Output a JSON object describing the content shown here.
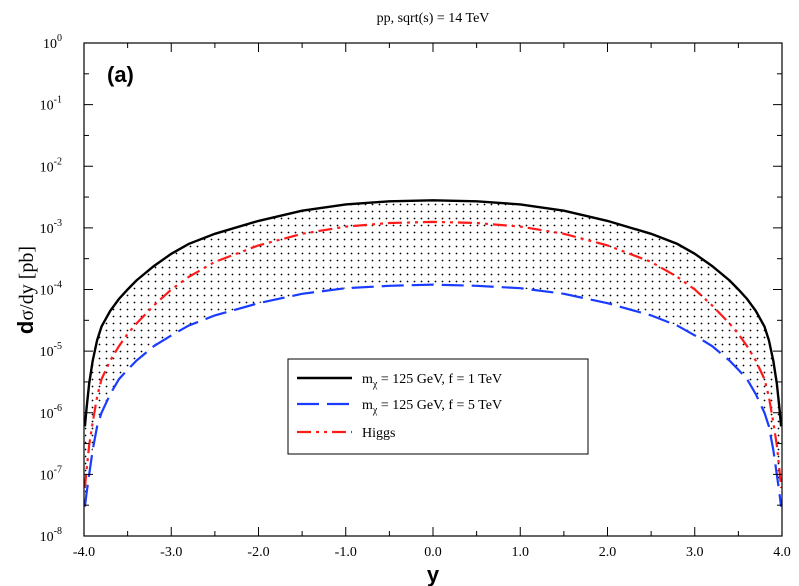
{
  "chart_data": {
    "type": "line",
    "title": "pp, sqrt(s) = 14 TeV",
    "panel_label": "(a)",
    "xlabel": "y",
    "ylabel": "dσ/dy [pb]",
    "xlim": [
      -4.0,
      4.0
    ],
    "ylim": [
      1e-08,
      1
    ],
    "y_scale": "log",
    "x_ticks": [
      "-4.0",
      "-3.0",
      "-2.0",
      "-1.0",
      "0.0",
      "1.0",
      "2.0",
      "3.0",
      "4.0"
    ],
    "y_ticks": [
      {
        "base": "10",
        "exp": "-8"
      },
      {
        "base": "10",
        "exp": "-7"
      },
      {
        "base": "10",
        "exp": "-6"
      },
      {
        "base": "10",
        "exp": "-5"
      },
      {
        "base": "10",
        "exp": "-4"
      },
      {
        "base": "10",
        "exp": "-3"
      },
      {
        "base": "10",
        "exp": "-2"
      },
      {
        "base": "10",
        "exp": "-1"
      },
      {
        "base": "10",
        "exp": "0"
      }
    ],
    "grid": false,
    "legend_position": "lower-center",
    "shaded_band": "between first and second series",
    "series": [
      {
        "name": "m_χ = 125 GeV, f = 1 TeV",
        "name_parts": {
          "m": "m",
          "sub": "χ",
          "rest": " = 125 GeV, f = 1 TeV"
        },
        "color": "#000000",
        "style": "solid",
        "x": [
          -3.99,
          -3.97,
          -3.94,
          -3.9,
          -3.85,
          -3.8,
          -3.7,
          -3.6,
          -3.5,
          -3.4,
          -3.2,
          -3.0,
          -2.8,
          -2.5,
          -2.0,
          -1.5,
          -1.0,
          -0.5,
          0.0,
          0.5,
          1.0,
          1.5,
          2.0,
          2.5,
          2.8,
          3.0,
          3.2,
          3.4,
          3.5,
          3.6,
          3.7,
          3.8,
          3.85,
          3.9,
          3.94,
          3.97,
          3.99
        ],
        "y": [
          6e-07,
          1.2e-06,
          3e-06,
          7e-06,
          1.5e-05,
          2.5e-05,
          4.5e-05,
          7e-05,
          0.0001,
          0.00014,
          0.00024,
          0.00038,
          0.00055,
          0.0008,
          0.0013,
          0.0019,
          0.0024,
          0.0027,
          0.0028,
          0.0027,
          0.0024,
          0.0019,
          0.0013,
          0.0008,
          0.00055,
          0.00038,
          0.00024,
          0.00014,
          0.0001,
          7e-05,
          4.5e-05,
          2.5e-05,
          1.5e-05,
          7e-06,
          3e-06,
          1.2e-06,
          6e-07
        ]
      },
      {
        "name": "m_χ = 125 GeV, f = 5 TeV",
        "name_parts": {
          "m": "m",
          "sub": "χ",
          "rest": " = 125 GeV, f = 5 TeV"
        },
        "color": "#1a3cff",
        "style": "dashed",
        "x": [
          -3.99,
          -3.97,
          -3.94,
          -3.9,
          -3.85,
          -3.8,
          -3.7,
          -3.6,
          -3.5,
          -3.4,
          -3.2,
          -3.0,
          -2.8,
          -2.5,
          -2.0,
          -1.5,
          -1.0,
          -0.5,
          0.0,
          0.5,
          1.0,
          1.5,
          2.0,
          2.5,
          2.8,
          3.0,
          3.2,
          3.4,
          3.5,
          3.6,
          3.7,
          3.8,
          3.85,
          3.9,
          3.94,
          3.97,
          3.99
        ],
        "y": [
          3e-08,
          5e-08,
          1e-07,
          2.5e-07,
          6e-07,
          1e-06,
          2e-06,
          3.5e-06,
          5e-06,
          7e-06,
          1.2e-05,
          1.8e-05,
          2.6e-05,
          3.8e-05,
          6e-05,
          8.5e-05,
          0.000105,
          0.000115,
          0.00012,
          0.000115,
          0.000105,
          8.5e-05,
          6e-05,
          3.8e-05,
          2.6e-05,
          1.8e-05,
          1.2e-05,
          7e-06,
          5e-06,
          3.5e-06,
          2e-06,
          1e-06,
          6e-07,
          2.5e-07,
          1e-07,
          5e-08,
          3e-08
        ]
      },
      {
        "name": "Higgs",
        "color": "#ff1a1a",
        "style": "dash-dot-dot",
        "x": [
          -3.99,
          -3.97,
          -3.94,
          -3.9,
          -3.85,
          -3.8,
          -3.7,
          -3.6,
          -3.5,
          -3.4,
          -3.2,
          -3.0,
          -2.8,
          -2.5,
          -2.0,
          -1.5,
          -1.0,
          -0.5,
          0.0,
          0.5,
          1.0,
          1.5,
          2.0,
          2.5,
          2.8,
          3.0,
          3.2,
          3.4,
          3.5,
          3.6,
          3.7,
          3.8,
          3.85,
          3.9,
          3.94,
          3.97,
          3.99
        ],
        "y": [
          6e-08,
          1.2e-07,
          3e-07,
          7e-07,
          1.8e-06,
          3.5e-06,
          7e-06,
          1.2e-05,
          1.9e-05,
          2.8e-05,
          5.5e-05,
          0.0001,
          0.00016,
          0.00028,
          0.00052,
          0.0008,
          0.00105,
          0.0012,
          0.00125,
          0.0012,
          0.00105,
          0.0008,
          0.00052,
          0.00028,
          0.00016,
          0.0001,
          5.5e-05,
          2.8e-05,
          1.9e-05,
          1.2e-05,
          7e-06,
          3.5e-06,
          1.8e-06,
          7e-07,
          3e-07,
          1.2e-07,
          6e-08
        ]
      }
    ]
  }
}
